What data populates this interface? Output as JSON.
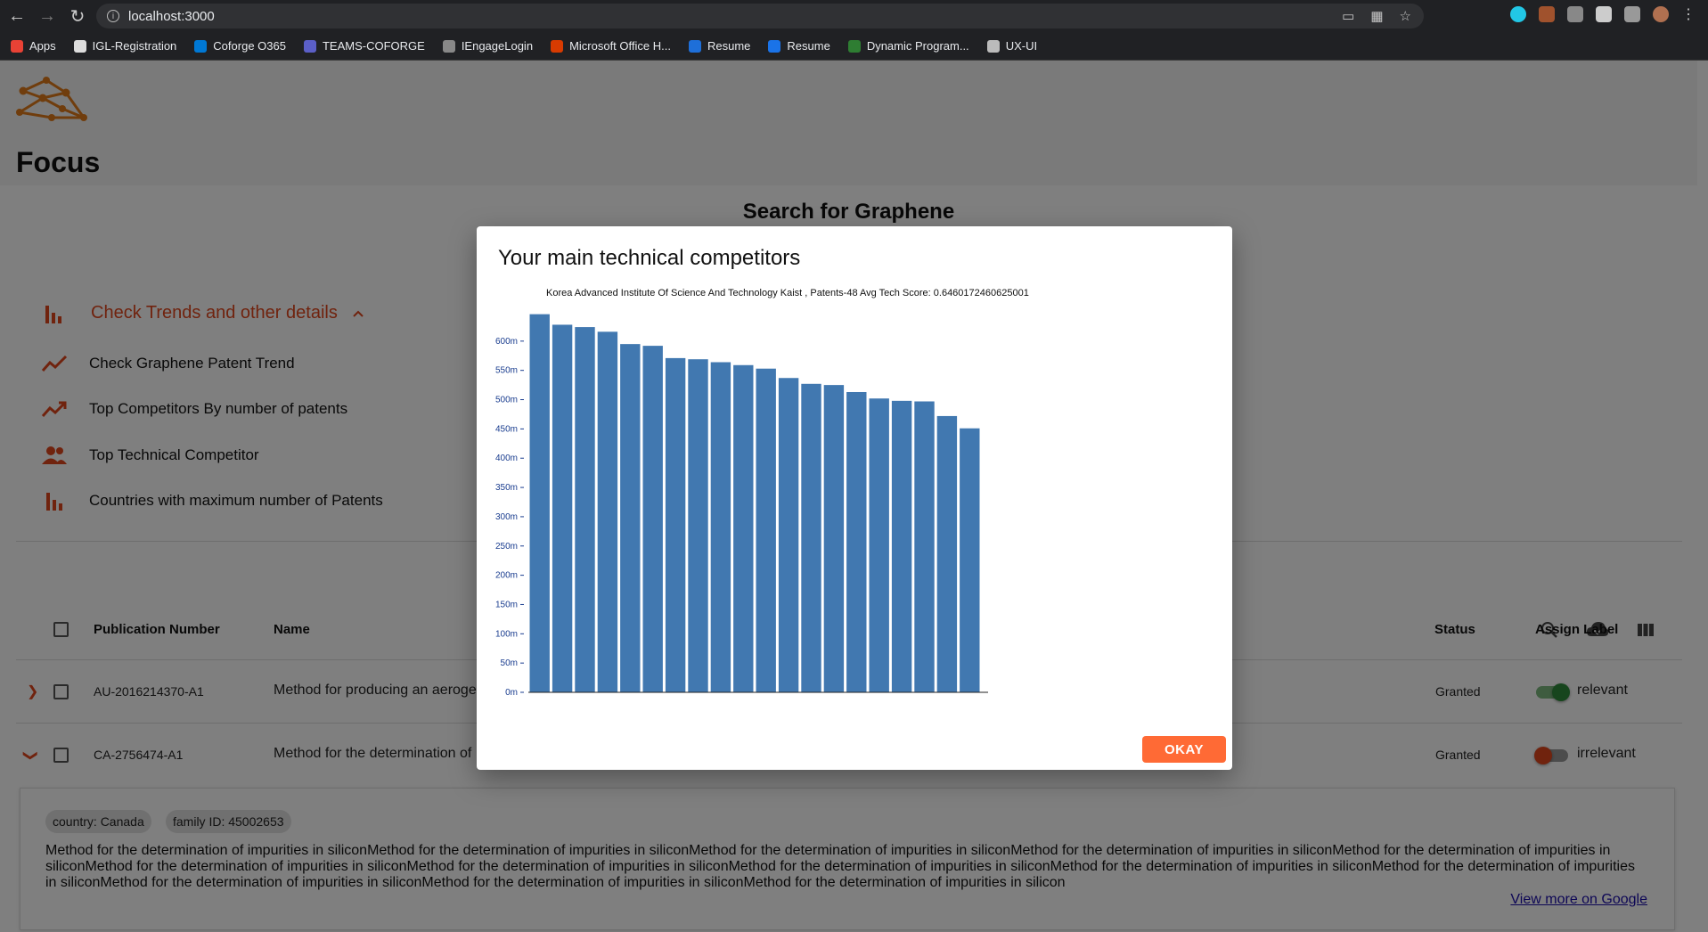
{
  "browser": {
    "url": "localhost:3000",
    "bookmarks": [
      {
        "label": "Apps",
        "color": "#e94235"
      },
      {
        "label": "IGL-Registration",
        "color": "#dddddd"
      },
      {
        "label": "Coforge O365",
        "color": "#0078d4"
      },
      {
        "label": "TEAMS-COFORGE",
        "color": "#5b5fc7"
      },
      {
        "label": "IEngageLogin",
        "color": "#888888"
      },
      {
        "label": "Microsoft Office H...",
        "color": "#d83b01"
      },
      {
        "label": "Resume",
        "color": "#1e6fd9"
      },
      {
        "label": "Resume",
        "color": "#1a73e8"
      },
      {
        "label": "Dynamic Program...",
        "color": "#2e7d32"
      },
      {
        "label": "UX-UI",
        "color": "#bbbbbb"
      }
    ]
  },
  "app": {
    "brand": "Focus",
    "search_title": "Search for Graphene",
    "accent": "#e0461d",
    "trends_toggle": "Check Trends and other details",
    "trend_items": [
      {
        "label": "Check Graphene Patent Trend",
        "icon": "trend-line-icon"
      },
      {
        "label": "Top Competitors By number of patents",
        "icon": "trending-up-icon"
      },
      {
        "label": "Top Technical Competitor",
        "icon": "people-icon"
      },
      {
        "label": "Countries with maximum number of Patents",
        "icon": "bar-chart-icon"
      }
    ],
    "table": {
      "headers": {
        "publication": "Publication Number",
        "name": "Name",
        "status": "Status",
        "label": "Assign Label"
      },
      "rows": [
        {
          "publication": "AU-2016214370-A1",
          "name": "Method for producing an aeroge",
          "status": "Granted",
          "label": "relevant",
          "label_on": true
        },
        {
          "publication": "CA-2756474-A1",
          "name": "Method for the determination of",
          "status": "Granted",
          "label": "irrelevant",
          "label_on": false
        }
      ]
    },
    "detail": {
      "country_chip": "country: Canada",
      "family_chip": "family ID: 45002653",
      "description": "Method for the determination of impurities in siliconMethod for the determination of impurities in siliconMethod for the determination of impurities in siliconMethod for the determination of impurities in siliconMethod for the determination of impurities in siliconMethod for the determination of impurities in siliconMethod for the determination of impurities in siliconMethod for the determination of impurities in siliconMethod for the determination of impurities in siliconMethod for the determination of impurities in siliconMethod for the determination of impurities in siliconMethod for the determination of impurities in siliconMethod for the determination of impurities in silicon",
      "more_link": "View more on Google"
    }
  },
  "modal": {
    "title": "Your main technical competitors",
    "okay_label": "OKAY"
  },
  "chart_data": {
    "type": "bar",
    "annotation": "Korea Advanced Institute Of Science And Technology Kaist , Patents-48 Avg Tech Score: 0.6460172460625001",
    "color": "#4178b0",
    "y_ticks": [
      "0m",
      "50m",
      "100m",
      "150m",
      "200m",
      "250m",
      "300m",
      "350m",
      "400m",
      "450m",
      "500m",
      "550m",
      "600m"
    ],
    "ylim": [
      0,
      0.65
    ],
    "values": [
      0.646,
      0.628,
      0.624,
      0.616,
      0.595,
      0.592,
      0.571,
      0.569,
      0.564,
      0.559,
      0.553,
      0.537,
      0.527,
      0.525,
      0.513,
      0.502,
      0.498,
      0.497,
      0.472,
      0.451
    ]
  }
}
